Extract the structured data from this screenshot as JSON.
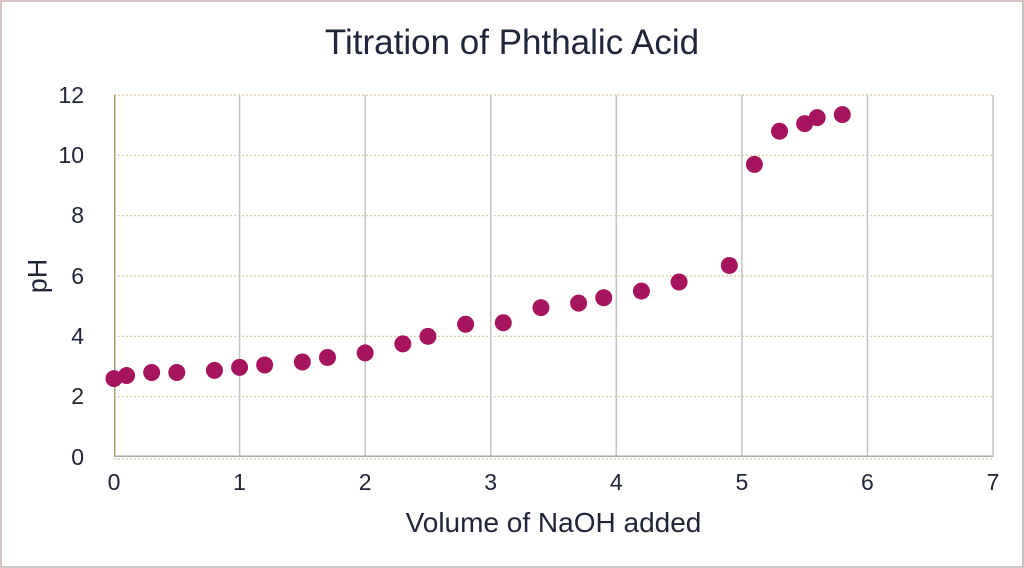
{
  "chart_data": {
    "type": "scatter",
    "title": "Titration of Phthalic Acid",
    "xlabel": "Volume of NaOH added",
    "ylabel": "pH",
    "xlim": [
      0,
      7
    ],
    "ylim": [
      0,
      12
    ],
    "x_ticks": [
      0,
      1,
      2,
      3,
      4,
      5,
      6,
      7
    ],
    "y_ticks": [
      0,
      2,
      4,
      6,
      8,
      10,
      12
    ],
    "grid": "on",
    "legend": "none",
    "series": [
      {
        "name": "pH",
        "marker": "circle",
        "points": [
          [
            0.0,
            2.6
          ],
          [
            0.1,
            2.7
          ],
          [
            0.3,
            2.8
          ],
          [
            0.5,
            2.8
          ],
          [
            0.8,
            2.87
          ],
          [
            1.0,
            2.97
          ],
          [
            1.2,
            3.05
          ],
          [
            1.5,
            3.15
          ],
          [
            1.7,
            3.3
          ],
          [
            2.0,
            3.45
          ],
          [
            2.3,
            3.75
          ],
          [
            2.5,
            4.0
          ],
          [
            2.8,
            4.4
          ],
          [
            3.1,
            4.45
          ],
          [
            3.4,
            4.95
          ],
          [
            3.7,
            5.1
          ],
          [
            3.9,
            5.28
          ],
          [
            4.2,
            5.5
          ],
          [
            4.5,
            5.8
          ],
          [
            4.9,
            6.35
          ],
          [
            5.1,
            9.7
          ],
          [
            5.3,
            10.8
          ],
          [
            5.5,
            11.05
          ],
          [
            5.6,
            11.25
          ],
          [
            5.8,
            11.35
          ]
        ]
      }
    ]
  },
  "colors": {
    "marker": "#a5145c",
    "h_gridline": "#ddc79e",
    "v_gridline": "#c3c3c3",
    "left_axis": "#a9a172",
    "bottom_axis": "#ababab",
    "text": "#20253a",
    "figure_border": "#d9c2c2",
    "background": "#ffffff"
  }
}
